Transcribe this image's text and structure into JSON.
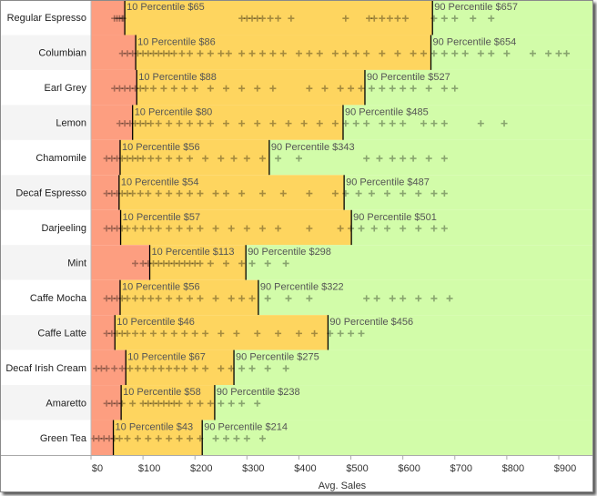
{
  "chart_data": {
    "type": "scatter",
    "xlabel": "Avg. Sales",
    "xlim": [
      0,
      960
    ],
    "x_ticks": [
      "$0",
      "$100",
      "$200",
      "$300",
      "$400",
      "$500",
      "$600",
      "$700",
      "$800",
      "$900"
    ],
    "x_tick_values": [
      0,
      100,
      200,
      300,
      400,
      500,
      600,
      700,
      800,
      900
    ],
    "band_colors": {
      "below_p10": "#fd9e80",
      "p10_to_p90": "#fed55f",
      "above_p90": "#d2fca9"
    },
    "marker": "plus",
    "marker_color": "#000000",
    "p10_label_prefix": "10 Percentile",
    "p90_label_prefix": "90 Percentile",
    "categories": [
      "Regular Espresso",
      "Columbian",
      "Earl Grey",
      "Lemon",
      "Chamomile",
      "Decaf Espresso",
      "Darjeeling",
      "Mint",
      "Caffe Mocha",
      "Caffe Latte",
      "Decaf Irish Cream",
      "Amaretto",
      "Green Tea"
    ],
    "p10": [
      65,
      86,
      88,
      80,
      56,
      54,
      57,
      113,
      56,
      46,
      67,
      58,
      43
    ],
    "p90": [
      657,
      654,
      527,
      485,
      343,
      487,
      501,
      298,
      322,
      456,
      275,
      238,
      214
    ],
    "p10_labels": [
      "10 Percentile $65",
      "10 Percentile $86",
      "10 Percentile $88",
      "10 Percentile $80",
      "10 Percentile $56",
      "10 Percentile $54",
      "10 Percentile $57",
      "10 Percentile $113",
      "10 Percentile $56",
      "10 Percentile $46",
      "10 Percentile $67",
      "10 Percentile $58",
      "10 Percentile $43"
    ],
    "p90_labels": [
      "90 Percentile $657",
      "90 Percentile $654",
      "90 Percentile $527",
      "90 Percentile $485",
      "90 Percentile $343",
      "90 Percentile $487",
      "90 Percentile $501",
      "90 Percentile $298",
      "90 Percentile $322",
      "90 Percentile $456",
      "90 Percentile $275",
      "90 Percentile $238",
      "90 Percentile $214"
    ],
    "points": [
      [
        45,
        50,
        55,
        60,
        62,
        290,
        300,
        310,
        320,
        330,
        345,
        360,
        385,
        490,
        535,
        545,
        560,
        575,
        590,
        605,
        660,
        680,
        700,
        735,
        770
      ],
      [
        60,
        70,
        80,
        90,
        100,
        110,
        120,
        130,
        140,
        150,
        160,
        175,
        190,
        210,
        230,
        250,
        265,
        290,
        310,
        330,
        350,
        370,
        400,
        420,
        440,
        470,
        490,
        510,
        530,
        560,
        590,
        620,
        640,
        660,
        680,
        700,
        720,
        750,
        770,
        800,
        850,
        880,
        900,
        915
      ],
      [
        45,
        55,
        65,
        75,
        85,
        95,
        105,
        120,
        140,
        160,
        180,
        200,
        230,
        260,
        290,
        320,
        350,
        420,
        450,
        480,
        500,
        520,
        540,
        560,
        580,
        600,
        620,
        650,
        680,
        700
      ],
      [
        55,
        65,
        75,
        85,
        95,
        105,
        115,
        130,
        150,
        170,
        190,
        210,
        230,
        260,
        290,
        320,
        350,
        380,
        410,
        440,
        470,
        490,
        510,
        530,
        560,
        580,
        600,
        640,
        660,
        680,
        750,
        795
      ],
      [
        30,
        40,
        50,
        60,
        70,
        80,
        90,
        100,
        115,
        130,
        150,
        170,
        190,
        220,
        250,
        275,
        300,
        330,
        360,
        400,
        530,
        555,
        580,
        600,
        620,
        650,
        680
      ],
      [
        30,
        40,
        50,
        60,
        70,
        80,
        95,
        110,
        130,
        150,
        170,
        190,
        210,
        240,
        260,
        290,
        330,
        370,
        420,
        470,
        490,
        515,
        540,
        570,
        600,
        630,
        660,
        680
      ],
      [
        30,
        40,
        50,
        60,
        70,
        85,
        100,
        115,
        130,
        150,
        170,
        190,
        210,
        240,
        270,
        300,
        330,
        360,
        420,
        480,
        500,
        520,
        545,
        570,
        600,
        630,
        660,
        680
      ],
      [
        85,
        100,
        110,
        120,
        130,
        140,
        150,
        160,
        170,
        180,
        190,
        200,
        210,
        230,
        260,
        290,
        310,
        340,
        375
      ],
      [
        30,
        40,
        50,
        60,
        70,
        85,
        100,
        115,
        130,
        150,
        170,
        190,
        210,
        240,
        270,
        290,
        310,
        340,
        380,
        420,
        530,
        550,
        580,
        600,
        630,
        660,
        690
      ],
      [
        30,
        40,
        50,
        60,
        70,
        85,
        100,
        120,
        140,
        160,
        180,
        200,
        220,
        250,
        280,
        320,
        360,
        400,
        430,
        460,
        480,
        500,
        520
      ],
      [
        10,
        20,
        30,
        45,
        60,
        75,
        90,
        105,
        120,
        135,
        150,
        165,
        180,
        200,
        220,
        250,
        270,
        290,
        310,
        340,
        375
      ],
      [
        30,
        40,
        50,
        60,
        80,
        100,
        110,
        120,
        130,
        140,
        150,
        160,
        170,
        190,
        210,
        230,
        250,
        270,
        290,
        320
      ],
      [
        5,
        15,
        25,
        35,
        45,
        55,
        70,
        90,
        110,
        130,
        150,
        170,
        190,
        210,
        240,
        260,
        280,
        300,
        330
      ]
    ]
  }
}
